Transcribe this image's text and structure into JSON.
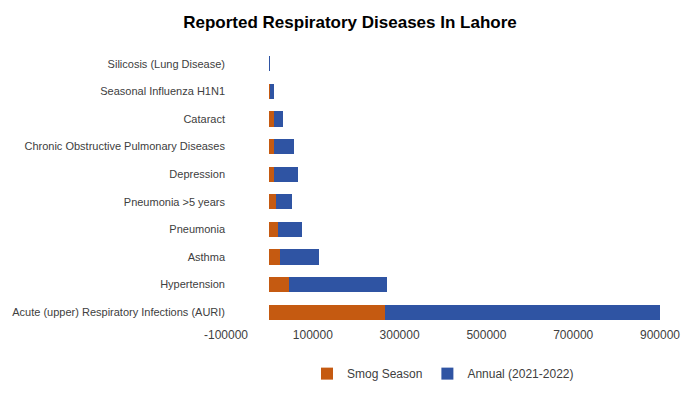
{
  "chart_data": {
    "type": "bar",
    "title": "Reported Respiratory Diseases In Lahore",
    "orientation": "horizontal",
    "stacked": true,
    "grid": false,
    "legend": "bottom",
    "categories": [
      "Acute (upper) Respiratory Infections (AURI)",
      "Hypertension",
      "Asthma",
      "Pneumonia",
      "Pneumonia >5 years",
      "Depression",
      "Chronic Obstructive Pulmonary Diseases",
      "Cataract",
      "Seasonal Influenza H1N1",
      "Silicosis (Lung Disease)"
    ],
    "series": [
      {
        "name": "Smog Season",
        "color": "#c55a11",
        "values": [
          266000,
          45000,
          25000,
          20000,
          16000,
          11000,
          11000,
          11000,
          2000,
          100
        ]
      },
      {
        "name": "Annual (2021-2022)",
        "color": "#2f54a3",
        "values": [
          634000,
          225000,
          89000,
          56000,
          35000,
          54000,
          45000,
          20000,
          9000,
          200
        ]
      }
    ],
    "xlim": [
      -100000,
      900000
    ],
    "xticks": [
      -100000,
      100000,
      300000,
      500000,
      700000,
      900000
    ]
  }
}
